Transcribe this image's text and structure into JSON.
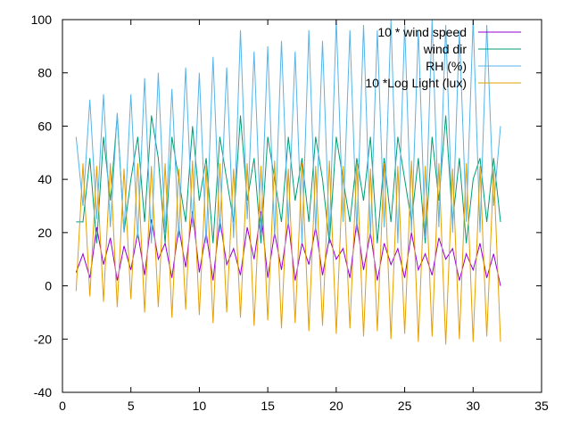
{
  "chart_data": {
    "type": "line",
    "title": "",
    "xlabel": "",
    "ylabel": "",
    "xlim": [
      0,
      35
    ],
    "ylim": [
      -40,
      100
    ],
    "x_ticks": [
      0,
      5,
      10,
      15,
      20,
      25,
      30,
      35
    ],
    "y_ticks": [
      -40,
      -20,
      0,
      20,
      40,
      60,
      80,
      100
    ],
    "grid": false,
    "legend_position": "top-right",
    "series": [
      {
        "name": "10 * wind speed",
        "color": "#9400d3",
        "x": [
          1,
          1.5,
          2,
          2.5,
          3,
          3.5,
          4,
          4.5,
          5,
          5.5,
          6,
          6.5,
          7,
          7.5,
          8,
          8.5,
          9,
          9.5,
          10,
          10.5,
          11,
          11.5,
          12,
          12.5,
          13,
          13.5,
          14,
          14.5,
          15,
          15.5,
          16,
          16.5,
          17,
          17.5,
          18,
          18.5,
          19,
          19.5,
          20,
          20.5,
          21,
          21.5,
          22,
          22.5,
          23,
          23.5,
          24,
          24.5,
          25,
          25.5,
          26,
          26.5,
          27,
          27.5,
          28,
          28.5,
          29,
          29.5,
          30,
          30.5,
          31,
          31.5,
          32
        ],
        "values": [
          5,
          12,
          3,
          22,
          8,
          18,
          2,
          15,
          6,
          20,
          4,
          25,
          10,
          16,
          3,
          22,
          7,
          28,
          5,
          20,
          2,
          25,
          8,
          14,
          4,
          22,
          10,
          28,
          3,
          20,
          6,
          24,
          2,
          16,
          8,
          22,
          4,
          18,
          10,
          14,
          3,
          24,
          6,
          20,
          2,
          16,
          8,
          14,
          3,
          20,
          6,
          12,
          4,
          18,
          10,
          14,
          2,
          12,
          6,
          16,
          3,
          12,
          0
        ]
      },
      {
        "name": "wind dir",
        "color": "#009e73",
        "x": [
          1,
          1.5,
          2,
          2.5,
          3,
          3.5,
          4,
          4.5,
          5,
          5.5,
          6,
          6.5,
          7,
          7.5,
          8,
          8.5,
          9,
          9.5,
          10,
          10.5,
          11,
          11.5,
          12,
          12.5,
          13,
          13.5,
          14,
          14.5,
          15,
          15.5,
          16,
          16.5,
          17,
          17.5,
          18,
          18.5,
          19,
          19.5,
          20,
          20.5,
          21,
          21.5,
          22,
          22.5,
          23,
          23.5,
          24,
          24.5,
          25,
          25.5,
          26,
          26.5,
          27,
          27.5,
          28,
          28.5,
          29,
          29.5,
          30,
          30.5,
          31,
          31.5,
          32
        ],
        "values": [
          24,
          24,
          48,
          16,
          56,
          32,
          64,
          20,
          40,
          56,
          24,
          64,
          48,
          16,
          56,
          40,
          24,
          60,
          32,
          48,
          16,
          56,
          40,
          24,
          64,
          32,
          48,
          16,
          56,
          40,
          24,
          56,
          32,
          48,
          24,
          56,
          40,
          16,
          56,
          40,
          24,
          48,
          32,
          56,
          16,
          48,
          24,
          56,
          40,
          24,
          48,
          16,
          56,
          32,
          64,
          24,
          48,
          16,
          40,
          48,
          24,
          48,
          24
        ]
      },
      {
        "name": "RH (%)",
        "color": "#56b4e9",
        "x": [
          1,
          1.5,
          2,
          2.5,
          3,
          3.5,
          4,
          4.5,
          5,
          5.5,
          6,
          6.5,
          7,
          7.5,
          8,
          8.5,
          9,
          9.5,
          10,
          10.5,
          11,
          11.5,
          12,
          12.5,
          13,
          13.5,
          14,
          14.5,
          15,
          15.5,
          16,
          16.5,
          17,
          17.5,
          18,
          18.5,
          19,
          19.5,
          20,
          20.5,
          21,
          21.5,
          22,
          22.5,
          23,
          23.5,
          24,
          24.5,
          25,
          25.5,
          26,
          26.5,
          27,
          27.5,
          28,
          28.5,
          29,
          29.5,
          30,
          30.5,
          31,
          31.5,
          32
        ],
        "values": [
          56,
          30,
          70,
          25,
          72,
          22,
          65,
          20,
          72,
          18,
          78,
          16,
          80,
          20,
          74,
          18,
          82,
          22,
          80,
          16,
          86,
          20,
          82,
          18,
          96,
          25,
          88,
          20,
          90,
          18,
          92,
          22,
          88,
          16,
          96,
          20,
          92,
          18,
          100,
          24,
          96,
          20,
          98,
          18,
          96,
          22,
          100,
          16,
          98,
          20,
          96,
          18,
          100,
          22,
          98,
          20,
          96,
          24,
          100,
          20,
          98,
          30,
          60
        ]
      },
      {
        "name": "10 *Log Light (lux)",
        "color": "#e69f00",
        "x": [
          1,
          1.5,
          2,
          2.5,
          3,
          3.5,
          4,
          4.5,
          5,
          5.5,
          6,
          6.5,
          7,
          7.5,
          8,
          8.5,
          9,
          9.5,
          10,
          10.5,
          11,
          11.5,
          12,
          12.5,
          13,
          13.5,
          14,
          14.5,
          15,
          15.5,
          16,
          16.5,
          17,
          17.5,
          18,
          18.5,
          19,
          19.5,
          20,
          20.5,
          21,
          21.5,
          22,
          22.5,
          23,
          23.5,
          24,
          24.5,
          25,
          25.5,
          26,
          26.5,
          27,
          27.5,
          28,
          28.5,
          29,
          29.5,
          30,
          30.5,
          31,
          31.5,
          32
        ],
        "values": [
          -2,
          46,
          -4,
          45,
          -6,
          46,
          -8,
          44,
          -5,
          46,
          -10,
          45,
          -8,
          46,
          -12,
          44,
          -9,
          47,
          -11,
          45,
          -14,
          46,
          -10,
          44,
          -12,
          46,
          -15,
          45,
          -13,
          47,
          -16,
          44,
          -14,
          46,
          -17,
          45,
          -15,
          47,
          -18,
          45,
          -16,
          46,
          -19,
          44,
          -17,
          46,
          -20,
          45,
          -18,
          47,
          -21,
          45,
          -19,
          46,
          -22,
          44,
          -20,
          46,
          -21,
          45,
          -19,
          44,
          -21
        ]
      }
    ]
  }
}
